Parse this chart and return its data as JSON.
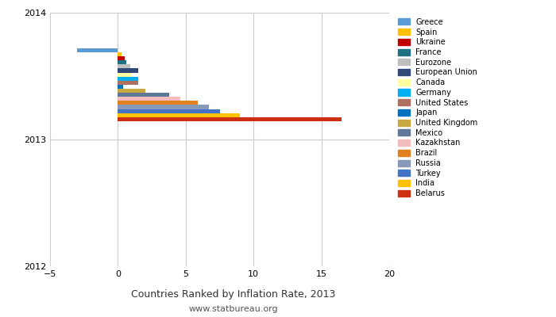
{
  "title": "Countries Ranked by Inflation Rate, 2013",
  "subtitle": "www.statbureau.org",
  "countries": [
    "Greece",
    "Spain",
    "Ukraine",
    "France",
    "Eurozone",
    "European Union",
    "Canada",
    "Germany",
    "United States",
    "Japan",
    "United Kingdom",
    "Mexico",
    "Kazakhstan",
    "Brazil",
    "Russia",
    "Turkey",
    "India",
    "Belarus"
  ],
  "values": [
    -3.0,
    0.25,
    0.5,
    0.6,
    0.9,
    1.5,
    1.0,
    1.5,
    1.5,
    0.4,
    2.0,
    3.8,
    4.6,
    5.9,
    6.7,
    7.5,
    9.0,
    16.5
  ],
  "colors": [
    "#5B9BD5",
    "#FFC000",
    "#C00000",
    "#1F7080",
    "#BFBFBF",
    "#2F4878",
    "#FFFFA0",
    "#00B0F0",
    "#B07060",
    "#0070C0",
    "#C8A840",
    "#607898",
    "#F4BDBD",
    "#E08020",
    "#8898B8",
    "#4472C4",
    "#FFC000",
    "#CC3010"
  ],
  "xlim": [
    -5,
    20
  ],
  "ylim": [
    2012,
    2014
  ],
  "yticks": [
    2012,
    2013,
    2014
  ],
  "xticks": [
    -5,
    0,
    5,
    10,
    15,
    20
  ],
  "bar_height": 0.032,
  "bar_spacing": 0.032,
  "top_y": 2013.72,
  "background_color": "#FFFFFF",
  "grid_color": "#CCCCCC"
}
